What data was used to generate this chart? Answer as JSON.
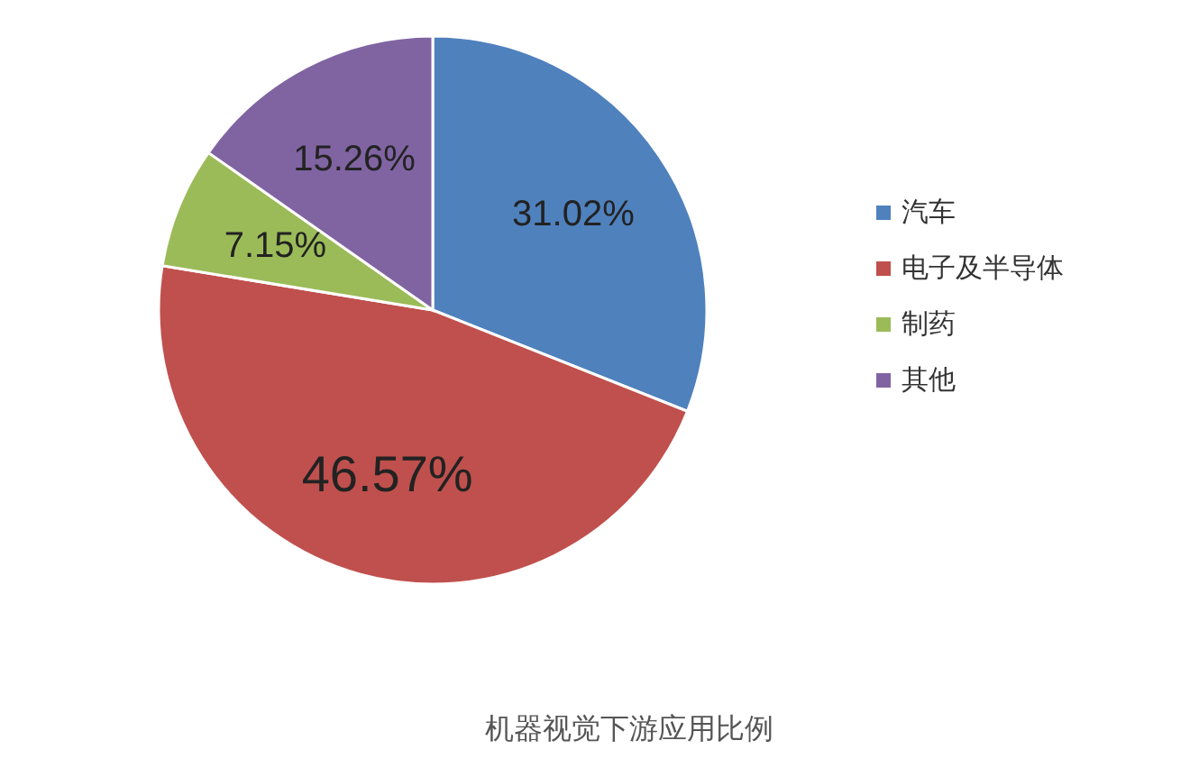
{
  "chart_data": {
    "type": "pie",
    "title": "机器视觉下游应用比例",
    "categories": [
      "汽车",
      "电子及半导体",
      "制药",
      "其他"
    ],
    "values": [
      31.02,
      46.57,
      7.15,
      15.26
    ],
    "colors": [
      "#4f81bd",
      "#c0504d",
      "#9bbb59",
      "#8064a2"
    ],
    "value_labels": [
      "31.02%",
      "46.57%",
      "7.15%",
      "15.26%"
    ],
    "legend": "right"
  }
}
